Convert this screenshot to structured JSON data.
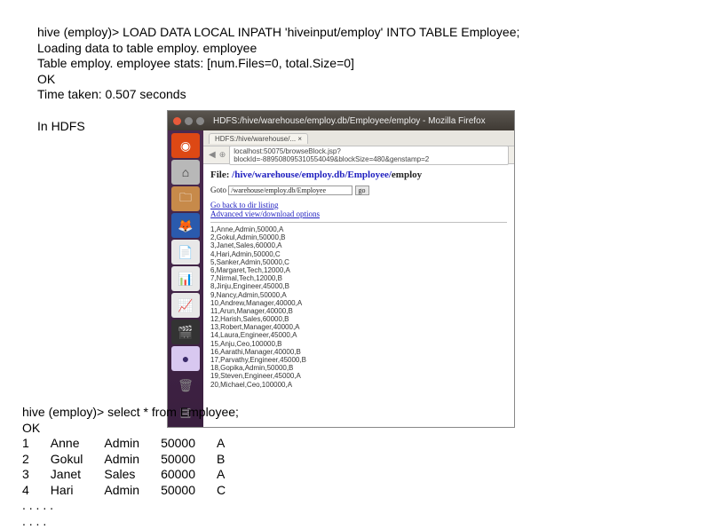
{
  "top": {
    "l1": "hive (employ)> LOAD DATA LOCAL INPATH 'hiveinput/employ' INTO TABLE Employee;",
    "l2": "Loading data to table employ. employee",
    "l3": "Table employ. employee stats: [num.Files=0, total.Size=0]",
    "l4": "OK",
    "l5": "Time taken: 0.507 seconds"
  },
  "mid_label": "In HDFS",
  "browser": {
    "window_title": "HDFS:/hive/warehouse/employ.db/Employee/employ - Mozilla Firefox",
    "tab": "HDFS:/hive/warehouse/... ×",
    "url": "localhost:50075/browseBlock.jsp?blockId=-889508095310554049&blockSize=480&genstamp=2",
    "file_prefix": "File: ",
    "file_path": "/hive/warehouse/employ.db/Employee/",
    "file_bold": "employ",
    "goto_label": "Goto",
    "goto_value": "/warehouse/employ.db/Employee",
    "goto_btn": "go",
    "link1": "Go back to dir listing",
    "link2": "Advanced view/download options",
    "rows": [
      "1,Anne,Admin,50000,A",
      "2,Gokul,Admin,50000,B",
      "3,Janet,Sales,60000,A",
      "4,Hari,Admin,50000,C",
      "5,Sanker,Admin,50000,C",
      "6,Margaret,Tech,12000,A",
      "7,Nirmal,Tech,12000,B",
      "8,Jinju,Engineer,45000,B",
      "9,Nancy,Admin,50000,A",
      "10,Andrew,Manager,40000,A",
      "11,Arun,Manager,40000,B",
      "12,Harish,Sales,60000,B",
      "13,Robert,Manager,40000,A",
      "14,Laura,Engineer,45000,A",
      "15,Anju,Ceo,100000,B",
      "16,Aarathi,Manager,40000,B",
      "17,Parvathy,Engineer,45000,B",
      "18,Gopika,Admin,50000,B",
      "19,Steven,Engineer,45000,A",
      "20,Michael,Ceo,100000,A"
    ]
  },
  "launcher": {
    "ubuntu": "◉",
    "home": "⌂",
    "folder": "🗀",
    "firefox": "🦊",
    "lo1": "📄",
    "lo2": "📊",
    "lo3": "📈",
    "video": "🎬",
    "eclipse": "●",
    "trash": "🗑",
    "more": "▦"
  },
  "bottom": {
    "q": "hive (employ)> select * from Employee;",
    "ok": "OK",
    "rows": [
      {
        "id": "1",
        "name": "Anne",
        "role": "Admin",
        "sal": "50000",
        "g": "A"
      },
      {
        "id": "2",
        "name": "Gokul",
        "role": "Admin",
        "sal": "50000",
        "g": "B"
      },
      {
        "id": "3",
        "name": "Janet",
        "role": "Sales",
        "sal": "60000",
        "g": "A"
      },
      {
        "id": "4",
        "name": "Hari",
        "role": "Admin",
        "sal": "50000",
        "g": "C"
      }
    ],
    "dots1": ". . . . .",
    "dots2": ". . . ."
  }
}
